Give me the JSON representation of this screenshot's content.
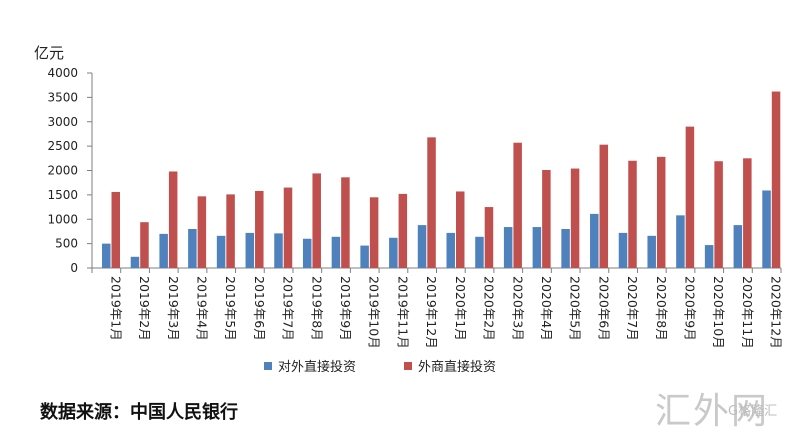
{
  "unit_label": "亿元",
  "source_text": "数据来源：中国人民银行",
  "watermark": {
    "main": "汇外网",
    "sub": "G格隆汇"
  },
  "colors": {
    "series1": "#4f81bd",
    "series2": "#c0504d",
    "axis": "#7f7f7f"
  },
  "chart_data": {
    "type": "bar",
    "categories": [
      "2019年1月",
      "2019年2月",
      "2019年3月",
      "2019年4月",
      "2019年5月",
      "2019年6月",
      "2019年7月",
      "2019年8月",
      "2019年9月",
      "2019年10月",
      "2019年11月",
      "2019年12月",
      "2020年1月",
      "2020年2月",
      "2020年3月",
      "2020年4月",
      "2020年5月",
      "2020年6月",
      "2020年7月",
      "2020年8月",
      "2020年9月",
      "2020年10月",
      "2020年11月",
      "2020年12月"
    ],
    "series": [
      {
        "name": "对外直接投资",
        "values": [
          500,
          230,
          700,
          800,
          660,
          720,
          710,
          600,
          640,
          460,
          620,
          880,
          720,
          640,
          840,
          840,
          800,
          1110,
          720,
          660,
          1080,
          470,
          880,
          1590
        ]
      },
      {
        "name": "外商直接投资",
        "values": [
          1560,
          940,
          1980,
          1470,
          1510,
          1580,
          1650,
          1940,
          1860,
          1450,
          1520,
          2680,
          1570,
          1250,
          2570,
          2010,
          2040,
          2530,
          2200,
          2280,
          2900,
          2190,
          2250,
          3620
        ]
      }
    ],
    "yticks": [
      0,
      500,
      1000,
      1500,
      2000,
      2500,
      3000,
      3500,
      4000
    ],
    "ylim": [
      0,
      4000
    ],
    "legend_position": "bottom",
    "grid": false
  }
}
